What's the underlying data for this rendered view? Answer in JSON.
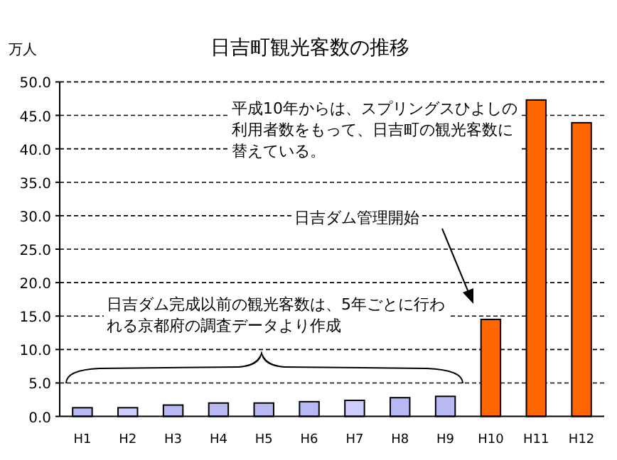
{
  "chart_data": {
    "type": "bar",
    "title": "日吉町観光客数の推移",
    "ylabel": "万人",
    "categories": [
      "H1",
      "H2",
      "H3",
      "H4",
      "H5",
      "H6",
      "H7",
      "H8",
      "H9",
      "H10",
      "H11",
      "H12"
    ],
    "values": [
      1.3,
      1.3,
      1.7,
      2.0,
      2.0,
      2.2,
      2.4,
      2.8,
      3.0,
      14.5,
      47.3,
      43.9
    ],
    "colors": [
      "#b8b8f4",
      "#ccccff",
      "#b8b8f4",
      "#b8b8f4",
      "#b8b8f4",
      "#b8b8f4",
      "#ccccff",
      "#b8b8f4",
      "#b8b8f4",
      "#ff6600",
      "#ff6600",
      "#ff6600"
    ],
    "ylim": [
      0,
      50
    ],
    "yticks": [
      {
        "value": 0,
        "label": "0.0"
      },
      {
        "value": 5,
        "label": "5.0"
      },
      {
        "value": 10,
        "label": "10.0"
      },
      {
        "value": 15,
        "label": "15.0"
      },
      {
        "value": 20,
        "label": "20.0"
      },
      {
        "value": 25,
        "label": "25.0"
      },
      {
        "value": 30,
        "label": "30.0"
      },
      {
        "value": 35,
        "label": "35.0"
      },
      {
        "value": 40,
        "label": "40.0"
      },
      {
        "value": 45,
        "label": "45.0"
      },
      {
        "value": 50,
        "label": "50.0"
      }
    ],
    "grid": "y",
    "annotations": [
      "平成10年からは、スプリングスひよしの利用者数をもって、日吉町の観光客数に替えている。",
      "日吉ダム管理開始",
      "日吉ダム完成以前の観光客数は、5年ごとに行われる京都府の調査データより作成"
    ]
  }
}
